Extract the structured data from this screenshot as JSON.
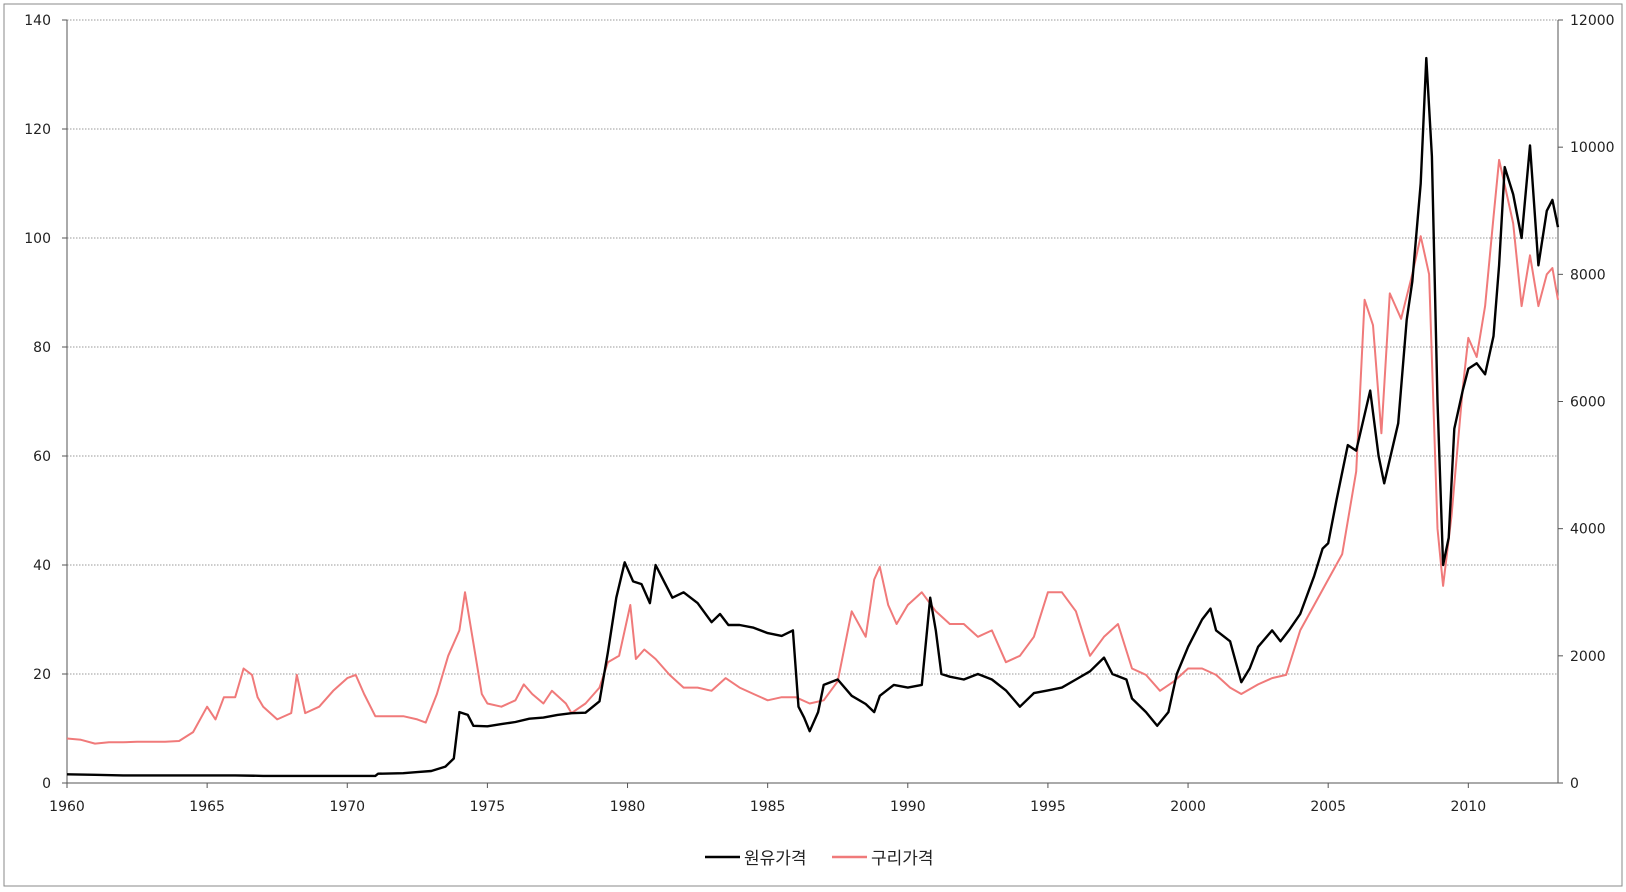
{
  "chart_data": {
    "type": "line",
    "title": "",
    "xlabel": "",
    "ylabel": "",
    "xlim": [
      1960,
      2013.2
    ],
    "ylim_left": [
      0,
      140
    ],
    "ylim_right": [
      0,
      12000
    ],
    "grid": true,
    "legend_position": "bottom",
    "x_ticks": [
      "1960",
      "1965",
      "1970",
      "1975",
      "1980",
      "1985",
      "1990",
      "1995",
      "2000",
      "2005",
      "2010"
    ],
    "y_ticks_left": [
      "0",
      "20",
      "40",
      "60",
      "80",
      "100",
      "120",
      "140"
    ],
    "y_ticks_right": [
      "0",
      "2000",
      "4000",
      "6000",
      "8000",
      "10000",
      "12000"
    ],
    "series": [
      {
        "name": "원유가격",
        "color": "#000000",
        "axis": "left",
        "points": [
          [
            1960,
            1.6
          ],
          [
            1961,
            1.5
          ],
          [
            1962,
            1.4
          ],
          [
            1963,
            1.4
          ],
          [
            1964,
            1.4
          ],
          [
            1965,
            1.4
          ],
          [
            1966,
            1.4
          ],
          [
            1967,
            1.3
          ],
          [
            1968,
            1.3
          ],
          [
            1969,
            1.3
          ],
          [
            1970,
            1.3
          ],
          [
            1971,
            1.3
          ],
          [
            1971.1,
            1.7
          ],
          [
            1972,
            1.8
          ],
          [
            1972.5,
            2.0
          ],
          [
            1973,
            2.2
          ],
          [
            1973.5,
            3.0
          ],
          [
            1973.8,
            4.5
          ],
          [
            1974,
            13.0
          ],
          [
            1974.3,
            12.5
          ],
          [
            1974.5,
            10.5
          ],
          [
            1975,
            10.4
          ],
          [
            1975.5,
            10.8
          ],
          [
            1976,
            11.2
          ],
          [
            1976.5,
            11.8
          ],
          [
            1977,
            12.0
          ],
          [
            1977.5,
            12.5
          ],
          [
            1978,
            12.8
          ],
          [
            1978.5,
            12.9
          ],
          [
            1979,
            15.0
          ],
          [
            1979.3,
            24.0
          ],
          [
            1979.6,
            34.0
          ],
          [
            1979.9,
            40.5
          ],
          [
            1980.2,
            37.0
          ],
          [
            1980.5,
            36.5
          ],
          [
            1980.8,
            33.0
          ],
          [
            1981,
            40.0
          ],
          [
            1981.3,
            37.0
          ],
          [
            1981.6,
            34.0
          ],
          [
            1982,
            35.0
          ],
          [
            1982.5,
            33.0
          ],
          [
            1983,
            29.5
          ],
          [
            1983.3,
            31.0
          ],
          [
            1983.6,
            29.0
          ],
          [
            1984,
            29.0
          ],
          [
            1984.5,
            28.5
          ],
          [
            1985,
            27.5
          ],
          [
            1985.5,
            27.0
          ],
          [
            1985.9,
            28.0
          ],
          [
            1986.1,
            14.0
          ],
          [
            1986.3,
            12.0
          ],
          [
            1986.5,
            9.5
          ],
          [
            1986.8,
            13.0
          ],
          [
            1987,
            18.0
          ],
          [
            1987.5,
            19.0
          ],
          [
            1988,
            16.0
          ],
          [
            1988.5,
            14.5
          ],
          [
            1988.8,
            13.0
          ],
          [
            1989,
            16.0
          ],
          [
            1989.5,
            18.0
          ],
          [
            1990,
            17.5
          ],
          [
            1990.5,
            18.0
          ],
          [
            1990.8,
            34.0
          ],
          [
            1991,
            28.0
          ],
          [
            1991.2,
            20.0
          ],
          [
            1991.5,
            19.5
          ],
          [
            1992,
            19.0
          ],
          [
            1992.5,
            20.0
          ],
          [
            1993,
            19.0
          ],
          [
            1993.5,
            17.0
          ],
          [
            1994,
            14.0
          ],
          [
            1994.5,
            16.5
          ],
          [
            1995,
            17.0
          ],
          [
            1995.5,
            17.5
          ],
          [
            1996,
            19.0
          ],
          [
            1996.5,
            20.5
          ],
          [
            1997,
            23.0
          ],
          [
            1997.3,
            20.0
          ],
          [
            1997.8,
            19.0
          ],
          [
            1998,
            15.5
          ],
          [
            1998.5,
            13.0
          ],
          [
            1998.9,
            10.5
          ],
          [
            1999.3,
            13.0
          ],
          [
            1999.6,
            20.0
          ],
          [
            2000,
            25.0
          ],
          [
            2000.5,
            30.0
          ],
          [
            2000.8,
            32.0
          ],
          [
            2001,
            28.0
          ],
          [
            2001.5,
            26.0
          ],
          [
            2001.9,
            18.5
          ],
          [
            2002.2,
            21.0
          ],
          [
            2002.5,
            25.0
          ],
          [
            2003,
            28.0
          ],
          [
            2003.3,
            26.0
          ],
          [
            2003.6,
            28.0
          ],
          [
            2004,
            31.0
          ],
          [
            2004.5,
            38.0
          ],
          [
            2004.8,
            43.0
          ],
          [
            2005,
            44.0
          ],
          [
            2005.3,
            52.0
          ],
          [
            2005.7,
            62.0
          ],
          [
            2006,
            61.0
          ],
          [
            2006.5,
            72.0
          ],
          [
            2006.8,
            60.0
          ],
          [
            2007,
            55.0
          ],
          [
            2007.5,
            66.0
          ],
          [
            2007.8,
            85.0
          ],
          [
            2008,
            92.0
          ],
          [
            2008.3,
            110.0
          ],
          [
            2008.5,
            133.0
          ],
          [
            2008.7,
            115.0
          ],
          [
            2008.9,
            70.0
          ],
          [
            2009.1,
            40.0
          ],
          [
            2009.3,
            45.0
          ],
          [
            2009.5,
            65.0
          ],
          [
            2009.8,
            72.0
          ],
          [
            2010,
            76.0
          ],
          [
            2010.3,
            77.0
          ],
          [
            2010.6,
            75.0
          ],
          [
            2010.9,
            82.0
          ],
          [
            2011.1,
            95.0
          ],
          [
            2011.3,
            113.0
          ],
          [
            2011.6,
            108.0
          ],
          [
            2011.9,
            100.0
          ],
          [
            2012.2,
            117.0
          ],
          [
            2012.5,
            95.0
          ],
          [
            2012.8,
            105.0
          ],
          [
            2013,
            107.0
          ],
          [
            2013.2,
            102.0
          ]
        ]
      },
      {
        "name": "구리가격",
        "color": "#f07a7a",
        "axis": "right",
        "points": [
          [
            1960,
            700
          ],
          [
            1960.5,
            680
          ],
          [
            1961,
            620
          ],
          [
            1961.5,
            640
          ],
          [
            1962,
            640
          ],
          [
            1962.5,
            650
          ],
          [
            1963,
            650
          ],
          [
            1963.5,
            650
          ],
          [
            1964,
            660
          ],
          [
            1964.5,
            800
          ],
          [
            1965,
            1200
          ],
          [
            1965.3,
            1000
          ],
          [
            1965.6,
            1350
          ],
          [
            1966,
            1350
          ],
          [
            1966.3,
            1800
          ],
          [
            1966.6,
            1700
          ],
          [
            1966.8,
            1350
          ],
          [
            1967,
            1200
          ],
          [
            1967.5,
            1000
          ],
          [
            1968,
            1100
          ],
          [
            1968.2,
            1700
          ],
          [
            1968.5,
            1100
          ],
          [
            1969,
            1200
          ],
          [
            1969.5,
            1450
          ],
          [
            1970,
            1650
          ],
          [
            1970.3,
            1700
          ],
          [
            1970.6,
            1400
          ],
          [
            1971,
            1050
          ],
          [
            1971.5,
            1050
          ],
          [
            1972,
            1050
          ],
          [
            1972.5,
            1000
          ],
          [
            1972.8,
            950
          ],
          [
            1973.2,
            1400
          ],
          [
            1973.6,
            2000
          ],
          [
            1974,
            2400
          ],
          [
            1974.2,
            3000
          ],
          [
            1974.5,
            2200
          ],
          [
            1974.8,
            1400
          ],
          [
            1975,
            1250
          ],
          [
            1975.5,
            1200
          ],
          [
            1976,
            1300
          ],
          [
            1976.3,
            1550
          ],
          [
            1976.6,
            1400
          ],
          [
            1977,
            1250
          ],
          [
            1977.3,
            1450
          ],
          [
            1977.8,
            1250
          ],
          [
            1978,
            1100
          ],
          [
            1978.5,
            1250
          ],
          [
            1979,
            1500
          ],
          [
            1979.3,
            1900
          ],
          [
            1979.7,
            2000
          ],
          [
            1980.1,
            2800
          ],
          [
            1980.3,
            1950
          ],
          [
            1980.6,
            2100
          ],
          [
            1981,
            1950
          ],
          [
            1981.5,
            1700
          ],
          [
            1982,
            1500
          ],
          [
            1982.5,
            1500
          ],
          [
            1983,
            1450
          ],
          [
            1983.5,
            1650
          ],
          [
            1984,
            1500
          ],
          [
            1984.5,
            1400
          ],
          [
            1985,
            1300
          ],
          [
            1985.5,
            1350
          ],
          [
            1986,
            1350
          ],
          [
            1986.5,
            1250
          ],
          [
            1987,
            1300
          ],
          [
            1987.5,
            1600
          ],
          [
            1988,
            2700
          ],
          [
            1988.5,
            2300
          ],
          [
            1988.8,
            3200
          ],
          [
            1989,
            3400
          ],
          [
            1989.3,
            2800
          ],
          [
            1989.6,
            2500
          ],
          [
            1990,
            2800
          ],
          [
            1990.5,
            3000
          ],
          [
            1991,
            2700
          ],
          [
            1991.5,
            2500
          ],
          [
            1992,
            2500
          ],
          [
            1992.5,
            2300
          ],
          [
            1993,
            2400
          ],
          [
            1993.5,
            1900
          ],
          [
            1994,
            2000
          ],
          [
            1994.5,
            2300
          ],
          [
            1995,
            3000
          ],
          [
            1995.5,
            3000
          ],
          [
            1996,
            2700
          ],
          [
            1996.5,
            2000
          ],
          [
            1997,
            2300
          ],
          [
            1997.5,
            2500
          ],
          [
            1998,
            1800
          ],
          [
            1998.5,
            1700
          ],
          [
            1999,
            1450
          ],
          [
            1999.5,
            1600
          ],
          [
            2000,
            1800
          ],
          [
            2000.5,
            1800
          ],
          [
            2001,
            1700
          ],
          [
            2001.5,
            1500
          ],
          [
            2001.9,
            1400
          ],
          [
            2002.5,
            1550
          ],
          [
            2003,
            1650
          ],
          [
            2003.5,
            1700
          ],
          [
            2004,
            2400
          ],
          [
            2004.5,
            2800
          ],
          [
            2005,
            3200
          ],
          [
            2005.5,
            3600
          ],
          [
            2006,
            4900
          ],
          [
            2006.3,
            7600
          ],
          [
            2006.6,
            7200
          ],
          [
            2006.9,
            5500
          ],
          [
            2007.2,
            7700
          ],
          [
            2007.6,
            7300
          ],
          [
            2008,
            8000
          ],
          [
            2008.3,
            8600
          ],
          [
            2008.6,
            8000
          ],
          [
            2008.9,
            4000
          ],
          [
            2009.1,
            3100
          ],
          [
            2009.4,
            4200
          ],
          [
            2009.8,
            6200
          ],
          [
            2010,
            7000
          ],
          [
            2010.3,
            6700
          ],
          [
            2010.6,
            7500
          ],
          [
            2010.9,
            8900
          ],
          [
            2011.1,
            9800
          ],
          [
            2011.4,
            9200
          ],
          [
            2011.6,
            8800
          ],
          [
            2011.9,
            7500
          ],
          [
            2012.2,
            8300
          ],
          [
            2012.5,
            7500
          ],
          [
            2012.8,
            8000
          ],
          [
            2013,
            8100
          ],
          [
            2013.2,
            7600
          ]
        ]
      }
    ]
  }
}
